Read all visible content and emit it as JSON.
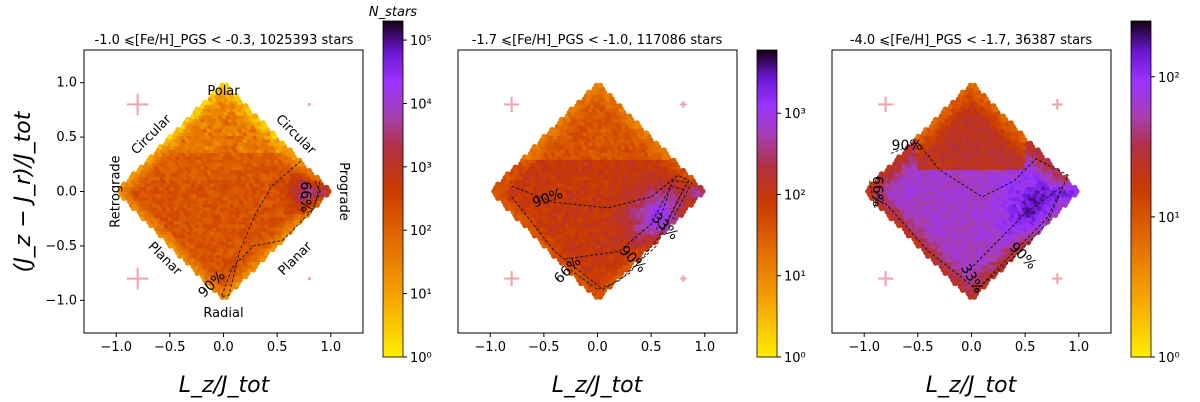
{
  "figure": {
    "ylabel": "(J_z − J_r)/J_tot",
    "xlabel": "L_z/J_tot"
  },
  "chart_data": [
    {
      "type": "heatmap",
      "title": "-1.0 ⩽[Fe/H]_PGS < -0.3, 1025393 stars",
      "xlabel": "L_z/J_tot",
      "ylabel": "(J_z − J_r)/J_tot",
      "xlim": [
        -1.3,
        1.3
      ],
      "ylim": [
        -1.3,
        1.3
      ],
      "xticks": [
        "−1.0",
        "−0.5",
        "0.0",
        "0.5",
        "1.0"
      ],
      "xtick_values": [
        -1.0,
        -0.5,
        0.0,
        0.5,
        1.0
      ],
      "yticks": [
        "1.0",
        "0.5",
        "0.0",
        "−0.5",
        "−1.0"
      ],
      "ytick_values": [
        1.0,
        0.5,
        0.0,
        -0.5,
        -1.0
      ],
      "colorbar": {
        "label": "N_stars",
        "scale": "log",
        "range": [
          1,
          200000
        ],
        "ticks": [
          "10⁰",
          "10¹",
          "10²",
          "10³",
          "10⁴",
          "10⁵"
        ],
        "tick_values": [
          1,
          10,
          100,
          1000,
          10000,
          100000
        ]
      },
      "region_labels": [
        {
          "text": "Polar",
          "x": 0.0,
          "y": 0.92,
          "rot": 0
        },
        {
          "text": "Radial",
          "x": 0.0,
          "y": -1.12,
          "rot": 0
        },
        {
          "text": "Circular",
          "x": -0.67,
          "y": 0.52,
          "rot": -45
        },
        {
          "text": "Circular",
          "x": 0.67,
          "y": 0.52,
          "rot": 45
        },
        {
          "text": "Planar",
          "x": -0.55,
          "y": -0.62,
          "rot": 45
        },
        {
          "text": "Planar",
          "x": 0.67,
          "y": -0.62,
          "rot": -45
        },
        {
          "text": "Retrograde",
          "x": -1.0,
          "y": 0.0,
          "rot": -90
        },
        {
          "text": "Prograde",
          "x": 1.12,
          "y": 0.0,
          "rot": 90
        }
      ],
      "contours": [
        {
          "label": "90%",
          "points": [
            [
              0.72,
              0.28
            ],
            [
              0.45,
              0.05
            ],
            [
              0.3,
              -0.2
            ],
            [
              0.15,
              -0.55
            ],
            [
              0.05,
              -0.95
            ],
            [
              -0.02,
              -0.97
            ],
            [
              0.08,
              -0.7
            ],
            [
              0.28,
              -0.5
            ],
            [
              0.55,
              -0.45
            ],
            [
              0.85,
              -0.15
            ],
            [
              0.9,
              0.1
            ]
          ],
          "label_pos": [
            -0.08,
            -0.88
          ],
          "label_rot": -45
        },
        {
          "label": "66%",
          "points": [
            [
              0.78,
              0.08
            ],
            [
              0.72,
              -0.05
            ],
            [
              0.75,
              -0.2
            ],
            [
              0.82,
              -0.18
            ],
            [
              0.9,
              0.0
            ],
            [
              0.85,
              0.1
            ]
          ],
          "label_pos": [
            0.72,
            -0.05
          ],
          "label_rot": 90
        }
      ],
      "error_bars": [
        {
          "x": -0.8,
          "y": 0.8,
          "dx": 0.1,
          "dy": 0.1
        },
        {
          "x": -0.8,
          "y": -0.8,
          "dx": 0.1,
          "dy": 0.1
        },
        {
          "x": 0.8,
          "y": 0.8,
          "dx": 0.01,
          "dy": 0.01
        },
        {
          "x": 0.8,
          "y": -0.8,
          "dx": 0.01,
          "dy": 0.01
        }
      ],
      "cmap_offset": 0.0
    },
    {
      "type": "heatmap",
      "title": "-1.7 ⩽[Fe/H]_PGS < -1.0, 117086 stars",
      "xlabel": "L_z/J_tot",
      "ylabel": "",
      "xlim": [
        -1.3,
        1.3
      ],
      "ylim": [
        -1.3,
        1.3
      ],
      "xticks": [
        "−1.0",
        "−0.5",
        "0.0",
        "0.5",
        "1.0"
      ],
      "xtick_values": [
        -1.0,
        -0.5,
        0.0,
        0.5,
        1.0
      ],
      "colorbar": {
        "label": "",
        "scale": "log",
        "range": [
          1,
          6000
        ],
        "ticks": [
          "10⁰",
          "10¹",
          "10²",
          "10³"
        ],
        "tick_values": [
          1,
          10,
          100,
          1000
        ]
      },
      "region_labels": [],
      "contours": [
        {
          "label": "90%",
          "points": [
            [
              -0.8,
              0.05
            ],
            [
              -0.4,
              -0.1
            ],
            [
              0.1,
              -0.15
            ],
            [
              0.5,
              -0.05
            ],
            [
              0.75,
              0.15
            ],
            [
              0.85,
              0.1
            ],
            [
              0.55,
              -0.45
            ],
            [
              0.3,
              -0.75
            ],
            [
              0.05,
              -0.9
            ],
            [
              -0.4,
              -0.55
            ],
            [
              -0.8,
              -0.05
            ]
          ],
          "label_pos": [
            -0.45,
            -0.1
          ],
          "label_rot": -20
        },
        {
          "label": "66%",
          "points": [
            [
              -0.3,
              -0.62
            ],
            [
              0.2,
              -0.55
            ],
            [
              0.5,
              -0.3
            ],
            [
              0.68,
              0.05
            ],
            [
              0.8,
              0.02
            ],
            [
              0.55,
              -0.5
            ],
            [
              0.2,
              -0.82
            ],
            [
              0.0,
              -0.9
            ],
            [
              -0.25,
              -0.72
            ]
          ],
          "label_pos": [
            -0.25,
            -0.75
          ],
          "label_rot": -45
        },
        {
          "label": "33%",
          "points": [
            [
              0.55,
              -0.35
            ],
            [
              0.7,
              0.1
            ],
            [
              0.88,
              0.08
            ],
            [
              0.7,
              -0.25
            ]
          ],
          "label_pos": [
            0.6,
            -0.35
          ],
          "label_rot": 45
        },
        {
          "label": "90%",
          "points": [],
          "label_pos": [
            0.3,
            -0.65
          ],
          "label_rot": 45
        }
      ],
      "error_bars": [
        {
          "x": -0.8,
          "y": 0.8,
          "dx": 0.07,
          "dy": 0.07
        },
        {
          "x": -0.8,
          "y": -0.8,
          "dx": 0.07,
          "dy": 0.07
        },
        {
          "x": 0.8,
          "y": 0.8,
          "dx": 0.03,
          "dy": 0.03
        },
        {
          "x": 0.8,
          "y": -0.8,
          "dx": 0.03,
          "dy": 0.03
        }
      ],
      "cmap_offset": 0.35
    },
    {
      "type": "heatmap",
      "title": "-4.0 ⩽[Fe/H]_PGS < -1.7, 36387 stars",
      "xlabel": "L_z/J_tot",
      "ylabel": "",
      "xlim": [
        -1.3,
        1.3
      ],
      "ylim": [
        -1.3,
        1.3
      ],
      "xticks": [
        "−1.0",
        "−0.5",
        "0.0",
        "0.5",
        "1.0"
      ],
      "xtick_values": [
        -1.0,
        -0.5,
        0.0,
        0.5,
        1.0
      ],
      "colorbar": {
        "label": "",
        "scale": "log",
        "range": [
          1,
          250
        ],
        "ticks": [
          "10⁰",
          "10¹",
          "10²"
        ],
        "tick_values": [
          1,
          10,
          100
        ]
      },
      "region_labels": [],
      "contours": [
        {
          "label": "90%",
          "points": [
            [
              -0.75,
              0.35
            ],
            [
              -0.5,
              0.45
            ],
            [
              -0.3,
              0.2
            ],
            [
              0.1,
              -0.05
            ],
            [
              0.4,
              0.1
            ],
            [
              0.6,
              0.3
            ],
            [
              0.9,
              0.15
            ],
            [
              0.7,
              -0.3
            ],
            [
              0.4,
              -0.6
            ],
            [
              0.05,
              -0.9
            ],
            [
              -0.4,
              -0.55
            ],
            [
              -0.9,
              0.0
            ]
          ],
          "label_pos": [
            -0.6,
            0.38
          ],
          "label_rot": 0
        },
        {
          "label": "66%",
          "points": [
            [
              -0.95,
              0.1
            ],
            [
              -0.9,
              -0.15
            ],
            [
              -0.85,
              0.05
            ]
          ],
          "label_pos": [
            -0.92,
            0.0
          ],
          "label_rot": 90
        },
        {
          "label": "33%",
          "points": [
            [
              -0.05,
              -0.75
            ],
            [
              0.2,
              -0.5
            ],
            [
              0.5,
              -0.2
            ],
            [
              0.85,
              0.05
            ],
            [
              0.7,
              -0.25
            ],
            [
              0.3,
              -0.65
            ],
            [
              0.05,
              -0.9
            ]
          ],
          "label_pos": [
            -0.03,
            -0.82
          ],
          "label_rot": 60
        },
        {
          "label": "90%",
          "points": [],
          "label_pos": [
            0.45,
            -0.62
          ],
          "label_rot": 45
        }
      ],
      "error_bars": [
        {
          "x": -0.8,
          "y": 0.8,
          "dx": 0.07,
          "dy": 0.07
        },
        {
          "x": -0.8,
          "y": -0.8,
          "dx": 0.07,
          "dy": 0.07
        },
        {
          "x": 0.8,
          "y": 0.8,
          "dx": 0.05,
          "dy": 0.05
        },
        {
          "x": 0.8,
          "y": -0.8,
          "dx": 0.05,
          "dy": 0.05
        }
      ],
      "cmap_offset": 0.6
    }
  ]
}
